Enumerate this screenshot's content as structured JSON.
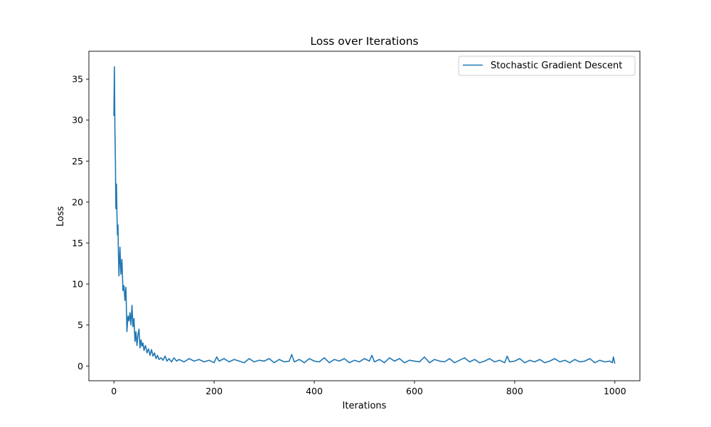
{
  "chart_data": {
    "type": "line",
    "title": "Loss over Iterations",
    "xlabel": "Iterations",
    "ylabel": "Loss",
    "xlim": [
      -50,
      1050
    ],
    "ylim": [
      -1.8,
      38.4
    ],
    "x_ticks": [
      0,
      200,
      400,
      600,
      800,
      1000
    ],
    "x_tick_labels": [
      "0",
      "200",
      "400",
      "600",
      "800",
      "1000"
    ],
    "y_ticks": [
      0,
      5,
      10,
      15,
      20,
      25,
      30,
      35
    ],
    "y_tick_labels": [
      "0",
      "5",
      "10",
      "15",
      "20",
      "25",
      "30",
      "35"
    ],
    "grid": false,
    "legend_position": "top-right",
    "series": [
      {
        "name": "Stochastic Gradient Descent",
        "color": "#1f77b4",
        "x": [
          0,
          1,
          2,
          3,
          4,
          5,
          6,
          7,
          8,
          9,
          10,
          12,
          14,
          16,
          18,
          20,
          22,
          24,
          26,
          28,
          30,
          32,
          34,
          36,
          38,
          40,
          42,
          44,
          46,
          48,
          50,
          52,
          54,
          56,
          58,
          60,
          63,
          66,
          69,
          72,
          75,
          78,
          81,
          84,
          87,
          90,
          94,
          98,
          102,
          106,
          110,
          115,
          120,
          125,
          130,
          140,
          150,
          160,
          170,
          180,
          190,
          200,
          205,
          210,
          220,
          230,
          240,
          250,
          260,
          270,
          280,
          290,
          300,
          310,
          320,
          330,
          340,
          350,
          355,
          360,
          370,
          380,
          390,
          400,
          410,
          420,
          430,
          440,
          450,
          460,
          470,
          480,
          490,
          500,
          510,
          515,
          520,
          530,
          540,
          550,
          560,
          570,
          580,
          590,
          600,
          610,
          620,
          630,
          640,
          650,
          660,
          670,
          680,
          690,
          700,
          710,
          720,
          730,
          740,
          750,
          760,
          770,
          780,
          785,
          790,
          800,
          810,
          820,
          830,
          840,
          850,
          860,
          870,
          880,
          890,
          900,
          910,
          920,
          930,
          940,
          950,
          960,
          970,
          980,
          990,
          995,
          997,
          1000
        ],
        "values": [
          30.5,
          36.5,
          29.0,
          25.2,
          19.2,
          22.2,
          18.5,
          16.0,
          17.2,
          13.5,
          11.0,
          14.5,
          11.2,
          13.0,
          9.2,
          9.8,
          8.0,
          9.6,
          4.2,
          6.1,
          5.5,
          6.5,
          5.0,
          7.4,
          4.8,
          5.8,
          3.0,
          4.2,
          2.5,
          3.8,
          4.5,
          2.2,
          3.2,
          2.4,
          2.8,
          1.9,
          2.5,
          1.6,
          2.1,
          1.3,
          2.0,
          1.2,
          1.6,
          0.9,
          1.3,
          0.8,
          1.0,
          0.7,
          1.2,
          0.6,
          0.9,
          0.5,
          1.0,
          0.6,
          0.8,
          0.5,
          0.9,
          0.6,
          0.8,
          0.5,
          0.7,
          0.4,
          1.1,
          0.6,
          0.9,
          0.5,
          0.8,
          0.6,
          0.4,
          0.9,
          0.5,
          0.7,
          0.6,
          0.9,
          0.4,
          0.8,
          0.5,
          0.6,
          1.4,
          0.5,
          0.8,
          0.4,
          0.9,
          0.6,
          0.5,
          1.0,
          0.4,
          0.8,
          0.6,
          0.9,
          0.4,
          0.7,
          0.5,
          0.9,
          0.6,
          1.3,
          0.5,
          0.8,
          0.4,
          1.0,
          0.6,
          0.9,
          0.4,
          0.7,
          0.6,
          0.5,
          1.1,
          0.4,
          0.8,
          0.6,
          0.5,
          0.9,
          0.4,
          0.7,
          1.0,
          0.5,
          0.8,
          0.4,
          0.6,
          0.9,
          0.5,
          0.7,
          0.4,
          1.2,
          0.5,
          0.6,
          0.9,
          0.4,
          0.7,
          0.5,
          0.8,
          0.4,
          0.6,
          0.9,
          0.5,
          0.7,
          0.4,
          0.8,
          0.5,
          0.6,
          0.9,
          0.4,
          0.7,
          0.5,
          0.6,
          0.4,
          1.1,
          0.3
        ]
      }
    ]
  }
}
